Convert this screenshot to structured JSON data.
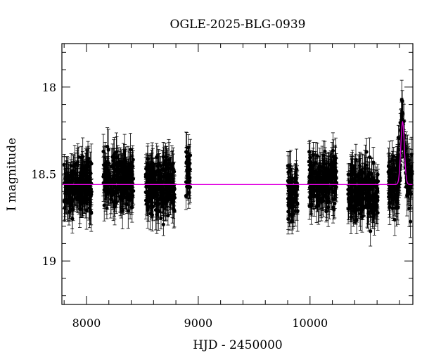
{
  "chart_data": {
    "type": "scatter",
    "title": "OGLE-2025-BLG-0939",
    "xlabel": "HJD - 2450000",
    "ylabel": "I magnitude",
    "xlim": [
      7780,
      10920
    ],
    "ylim": [
      19.25,
      17.75
    ],
    "y_inverted": true,
    "x_ticks": [
      8000,
      9000,
      10000
    ],
    "y_ticks": [
      18,
      18.5,
      19
    ],
    "x_tick_labels": [
      "8000",
      "9000",
      "10000"
    ],
    "y_tick_labels": [
      "18",
      "18.5",
      "19"
    ],
    "grid": false,
    "colors": {
      "points": "#000000",
      "model": "#e000e0"
    },
    "observing_seasons": [
      {
        "start": 7800,
        "end": 8050,
        "mean_mag": 18.57
      },
      {
        "start": 8150,
        "end": 8420,
        "mean_mag": 18.53
      },
      {
        "start": 8530,
        "end": 8790,
        "mean_mag": 18.57
      },
      {
        "start": 8890,
        "end": 8930,
        "mean_mag": 18.5
      },
      {
        "start": 9800,
        "end": 9890,
        "mean_mag": 18.6
      },
      {
        "start": 9990,
        "end": 10240,
        "mean_mag": 18.55
      },
      {
        "start": 10340,
        "end": 10610,
        "mean_mag": 18.6
      },
      {
        "start": 10700,
        "end": 10920,
        "mean_mag": 18.55
      }
    ],
    "model": {
      "baseline_mag": 18.56,
      "peak_time": 10828,
      "peak_mag": 18.2,
      "width_days": 16
    },
    "peak_points": [
      {
        "x": 10820,
        "y": 18.22
      },
      {
        "x": 10826,
        "y": 18.08
      },
      {
        "x": 10830,
        "y": 18.15
      },
      {
        "x": 10834,
        "y": 18.3
      },
      {
        "x": 10816,
        "y": 18.35
      },
      {
        "x": 10840,
        "y": 18.4
      }
    ]
  }
}
